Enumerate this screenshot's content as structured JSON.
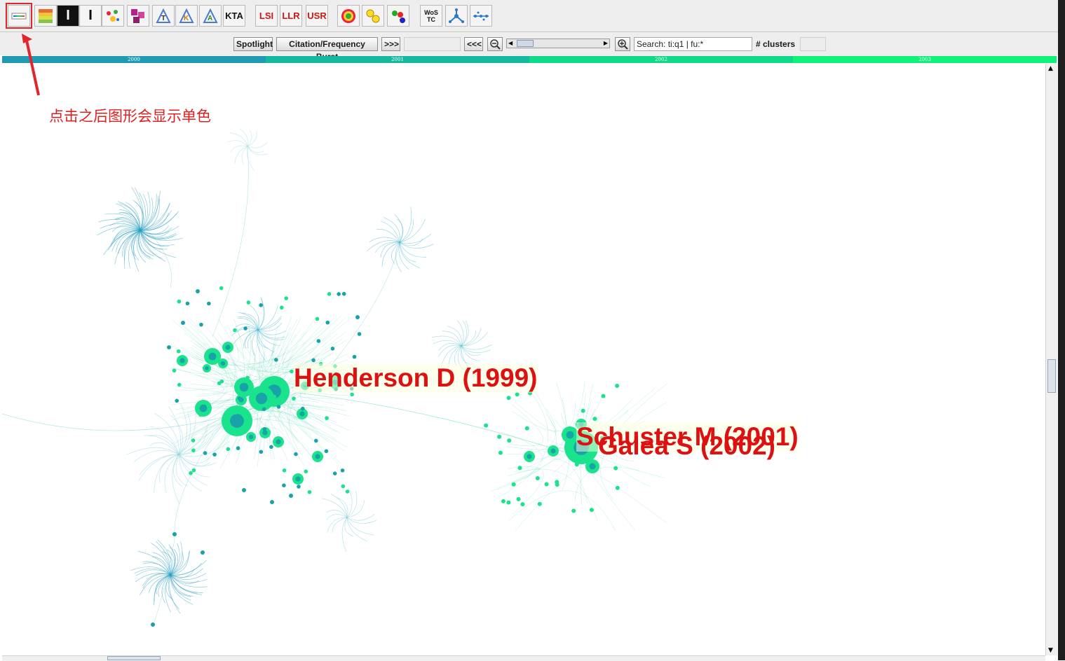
{
  "toolbar": {
    "buttons": [
      {
        "name": "single-color-button",
        "label": "",
        "icon": "color-bar-icon"
      },
      {
        "name": "color-palette-button",
        "label": "",
        "icon": "color-grid-icon"
      },
      {
        "name": "reverse-i-button",
        "label": "",
        "icon": "inverse-i-icon"
      },
      {
        "name": "i-beam-button",
        "label": "",
        "icon": "i-beam-icon"
      },
      {
        "name": "cluster-scatter-button",
        "label": "",
        "icon": "scatter-icon"
      },
      {
        "name": "cluster-blocks-button",
        "label": "",
        "icon": "blocks-icon"
      },
      {
        "name": "label-t-button",
        "label": "",
        "icon": "triangle-t-icon"
      },
      {
        "name": "label-k-button",
        "label": "",
        "icon": "triangle-k-icon"
      },
      {
        "name": "label-a-button",
        "label": "",
        "icon": "triangle-a-icon"
      },
      {
        "name": "kta-button",
        "label": "KTA",
        "icon": ""
      },
      {
        "name": "lsi-button",
        "label": "LSI",
        "icon": ""
      },
      {
        "name": "llr-button",
        "label": "LLR",
        "icon": ""
      },
      {
        "name": "usr-button",
        "label": "USR",
        "icon": ""
      },
      {
        "name": "ring-button",
        "label": "",
        "icon": "concentric-ring-icon"
      },
      {
        "name": "yellow-nodes-button",
        "label": "",
        "icon": "yellow-circles-icon"
      },
      {
        "name": "rgb-nodes-button",
        "label": "",
        "icon": "rgb-circles-icon"
      },
      {
        "name": "wos-tc-button",
        "label": "WoS TC",
        "icon": ""
      },
      {
        "name": "network-button",
        "label": "",
        "icon": "network-icon"
      },
      {
        "name": "timeline-button",
        "label": "",
        "icon": "timeline-dots-icon"
      }
    ]
  },
  "controls": {
    "spotlight": "Spotlight",
    "burst": "Citation/Frequency Burst",
    "next": ">>>",
    "prev": "<<<",
    "search_value": "Search: ti:q1 | fu:*",
    "clusters_label": "# clusters"
  },
  "timeline": {
    "years": [
      {
        "label": "2000",
        "color": "#1f9ab5"
      },
      {
        "label": "2001",
        "color": "#16b9a0"
      },
      {
        "label": "2002",
        "color": "#10d98a"
      },
      {
        "label": "2003",
        "color": "#0ef27a"
      }
    ]
  },
  "graph": {
    "labels": [
      "Henderson D (1999)",
      "Schuster M (2001)",
      "Galea S (2002)"
    ]
  },
  "annotation": "点击之后图形会显示单色",
  "colors": {
    "accent": "#e0262a",
    "node": "#19e38c",
    "node_dark": "#17a3a8",
    "edge": "#4fb8c7",
    "label": "#dd1111"
  }
}
